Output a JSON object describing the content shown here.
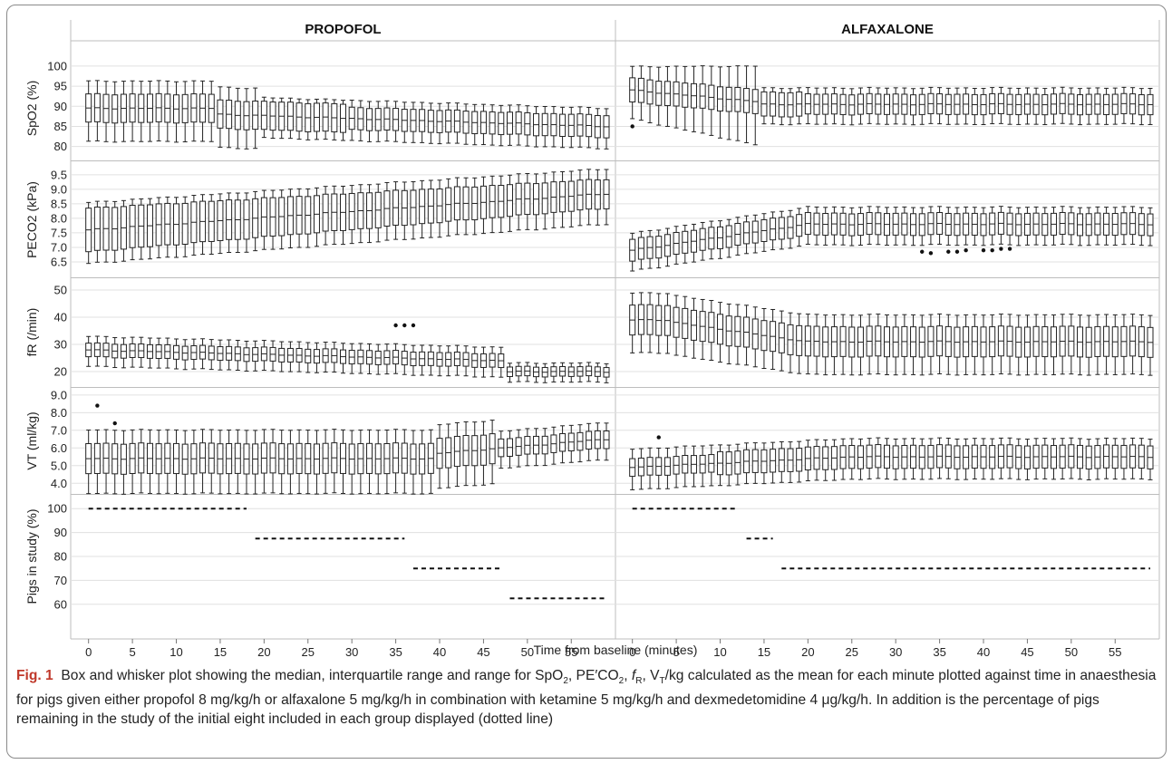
{
  "chart_data": {
    "type": "box",
    "panels": [
      {
        "title": "PROPOFOL"
      },
      {
        "title": "ALFAXALONE"
      }
    ],
    "xlabel": "Time from baseline (minutes)",
    "x_ticks": [
      0,
      5,
      10,
      15,
      20,
      25,
      30,
      35,
      40,
      45,
      50,
      55
    ],
    "xlim": [
      -1,
      59
    ],
    "rows": [
      {
        "ylabel": "SpO2 (%)",
        "ylim": [
          77,
          102
        ],
        "ticks": [
          80,
          85,
          90,
          95,
          100
        ]
      },
      {
        "ylabel": "PECO2 (kPa)",
        "ylim": [
          6.0,
          9.9
        ],
        "ticks": [
          6.5,
          7.0,
          7.5,
          8.0,
          8.5,
          9.0,
          9.5
        ]
      },
      {
        "ylabel": "fR (/min)",
        "ylim": [
          15,
          54
        ],
        "ticks": [
          20,
          30,
          40,
          50
        ]
      },
      {
        "ylabel": "VT (ml/kg)",
        "ylim": [
          3.5,
          9.3
        ],
        "ticks": [
          4.0,
          5.0,
          6.0,
          7.0,
          8.0,
          9.0
        ]
      },
      {
        "ylabel": "Pigs in study (%)",
        "ylim": [
          55,
          105
        ],
        "ticks": [
          60,
          70,
          80,
          90,
          100
        ]
      }
    ],
    "pigs_in_study": {
      "propofol": [
        {
          "x": [
            0,
            18
          ],
          "y": 100
        },
        {
          "x": [
            19,
            36
          ],
          "y": 87.5
        },
        {
          "x": [
            37,
            47
          ],
          "y": 75
        },
        {
          "x": [
            48,
            59
          ],
          "y": 62.5
        }
      ],
      "alfaxalone": [
        {
          "x": [
            0,
            12
          ],
          "y": 100
        },
        {
          "x": [
            13,
            16
          ],
          "y": 87.5
        },
        {
          "x": [
            17,
            59
          ],
          "y": 75
        }
      ]
    },
    "outliers": {
      "propofol": {
        "VT (ml/kg)": [
          [
            1,
            8.4
          ],
          [
            3,
            7.4
          ]
        ],
        "fR (/min)": [
          [
            35,
            37
          ],
          [
            36,
            37
          ],
          [
            37,
            37
          ]
        ]
      },
      "alfaxalone": {
        "SpO2 (%)": [
          [
            0,
            85
          ]
        ],
        "VT (ml/kg)": [
          [
            3,
            6.6
          ]
        ],
        "PECO2 (kPa)": [
          [
            33,
            6.85
          ],
          [
            34,
            6.8
          ],
          [
            36,
            6.85
          ],
          [
            37,
            6.85
          ],
          [
            38,
            6.9
          ],
          [
            40,
            6.9
          ],
          [
            41,
            6.9
          ],
          [
            42,
            6.95
          ],
          [
            43,
            6.95
          ]
        ]
      }
    }
  },
  "caption": {
    "label": "Fig. 1",
    "text": "Box and whisker plot showing the median, interquartile range and range for SpO₂, PE′CO₂, f_R, V_T/kg calculated as the mean for each minute plotted against time in anaesthesia for pigs given either propofol 8 mg/kg/h or alfaxalone 5 mg/kg/h in combination with ketamine 5 mg/kg/h and dexmedetomidine 4 μg/kg/h. In addition is the percentage of pigs remaining in the study of the initial eight included in each group displayed (dotted line)"
  }
}
